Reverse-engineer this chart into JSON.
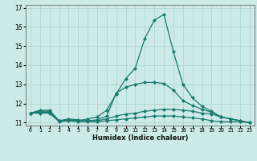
{
  "xlabel": "Humidex (Indice chaleur)",
  "x_values": [
    0,
    1,
    2,
    3,
    4,
    5,
    6,
    7,
    8,
    9,
    10,
    11,
    12,
    13,
    14,
    15,
    16,
    17,
    18,
    19,
    20,
    21,
    22,
    23
  ],
  "series": [
    [
      11.5,
      11.65,
      11.65,
      11.1,
      11.15,
      11.1,
      11.2,
      11.3,
      11.65,
      12.5,
      13.3,
      13.85,
      15.4,
      16.35,
      16.65,
      14.7,
      13.0,
      12.3,
      11.85,
      11.6,
      11.3,
      11.2,
      11.1,
      11.0
    ],
    [
      11.5,
      11.6,
      11.6,
      11.1,
      11.2,
      11.15,
      11.1,
      11.15,
      11.35,
      12.55,
      12.85,
      13.0,
      13.1,
      13.1,
      13.05,
      12.7,
      12.15,
      11.9,
      11.7,
      11.55,
      11.3,
      11.2,
      11.1,
      11.0
    ],
    [
      11.5,
      11.55,
      11.55,
      11.1,
      11.15,
      11.1,
      11.1,
      11.1,
      11.2,
      11.35,
      11.45,
      11.5,
      11.6,
      11.65,
      11.7,
      11.7,
      11.65,
      11.6,
      11.5,
      11.45,
      11.3,
      11.2,
      11.1,
      11.0
    ],
    [
      11.5,
      11.5,
      11.5,
      11.05,
      11.1,
      11.05,
      11.05,
      11.05,
      11.1,
      11.15,
      11.2,
      11.25,
      11.3,
      11.35,
      11.35,
      11.35,
      11.3,
      11.25,
      11.2,
      11.1,
      11.05,
      11.05,
      11.05,
      11.0
    ]
  ],
  "line_color": "#1a7a6e",
  "bg_color": "#cceae7",
  "grid_color": "#aad4d0",
  "ylim": [
    10.85,
    17.15
  ],
  "yticks": [
    11,
    12,
    13,
    14,
    15,
    16,
    17
  ],
  "marker": "D",
  "markersize": 2.0,
  "linewidth": 0.9
}
